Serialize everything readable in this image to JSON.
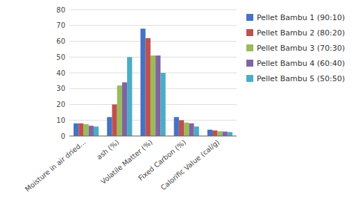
{
  "chart_data": {
    "type": "bar",
    "categories": [
      "Moisture in air dried...",
      "ash (%)",
      "Volatile Matter (%)",
      "Fixed Carbon (%)",
      "Calorific Value (cal/g)"
    ],
    "series": [
      {
        "name": "Pellet Bambu 1 (90:10)",
        "color": "#4472C4",
        "values": [
          8,
          12,
          68,
          12,
          4
        ]
      },
      {
        "name": "Pellet Bambu 2 (80:20)",
        "color": "#C0504D",
        "values": [
          8,
          20,
          62,
          10,
          3.5
        ]
      },
      {
        "name": "Pellet Bambu 3 (70:30)",
        "color": "#9BBB59",
        "values": [
          7.5,
          32,
          51,
          8.5,
          3
        ]
      },
      {
        "name": "Pellet Bambu 4 (60:40)",
        "color": "#8064A2",
        "values": [
          6.5,
          34,
          51,
          8,
          2.8
        ]
      },
      {
        "name": "Pellet Bambu 5 (50:50)",
        "color": "#4BACC6",
        "values": [
          6,
          50,
          40,
          6,
          2.5
        ]
      }
    ],
    "ylim": [
      0,
      80
    ],
    "yticks": [
      0,
      10,
      20,
      30,
      40,
      50,
      60,
      70,
      80
    ],
    "grid": true,
    "legend": "right"
  }
}
